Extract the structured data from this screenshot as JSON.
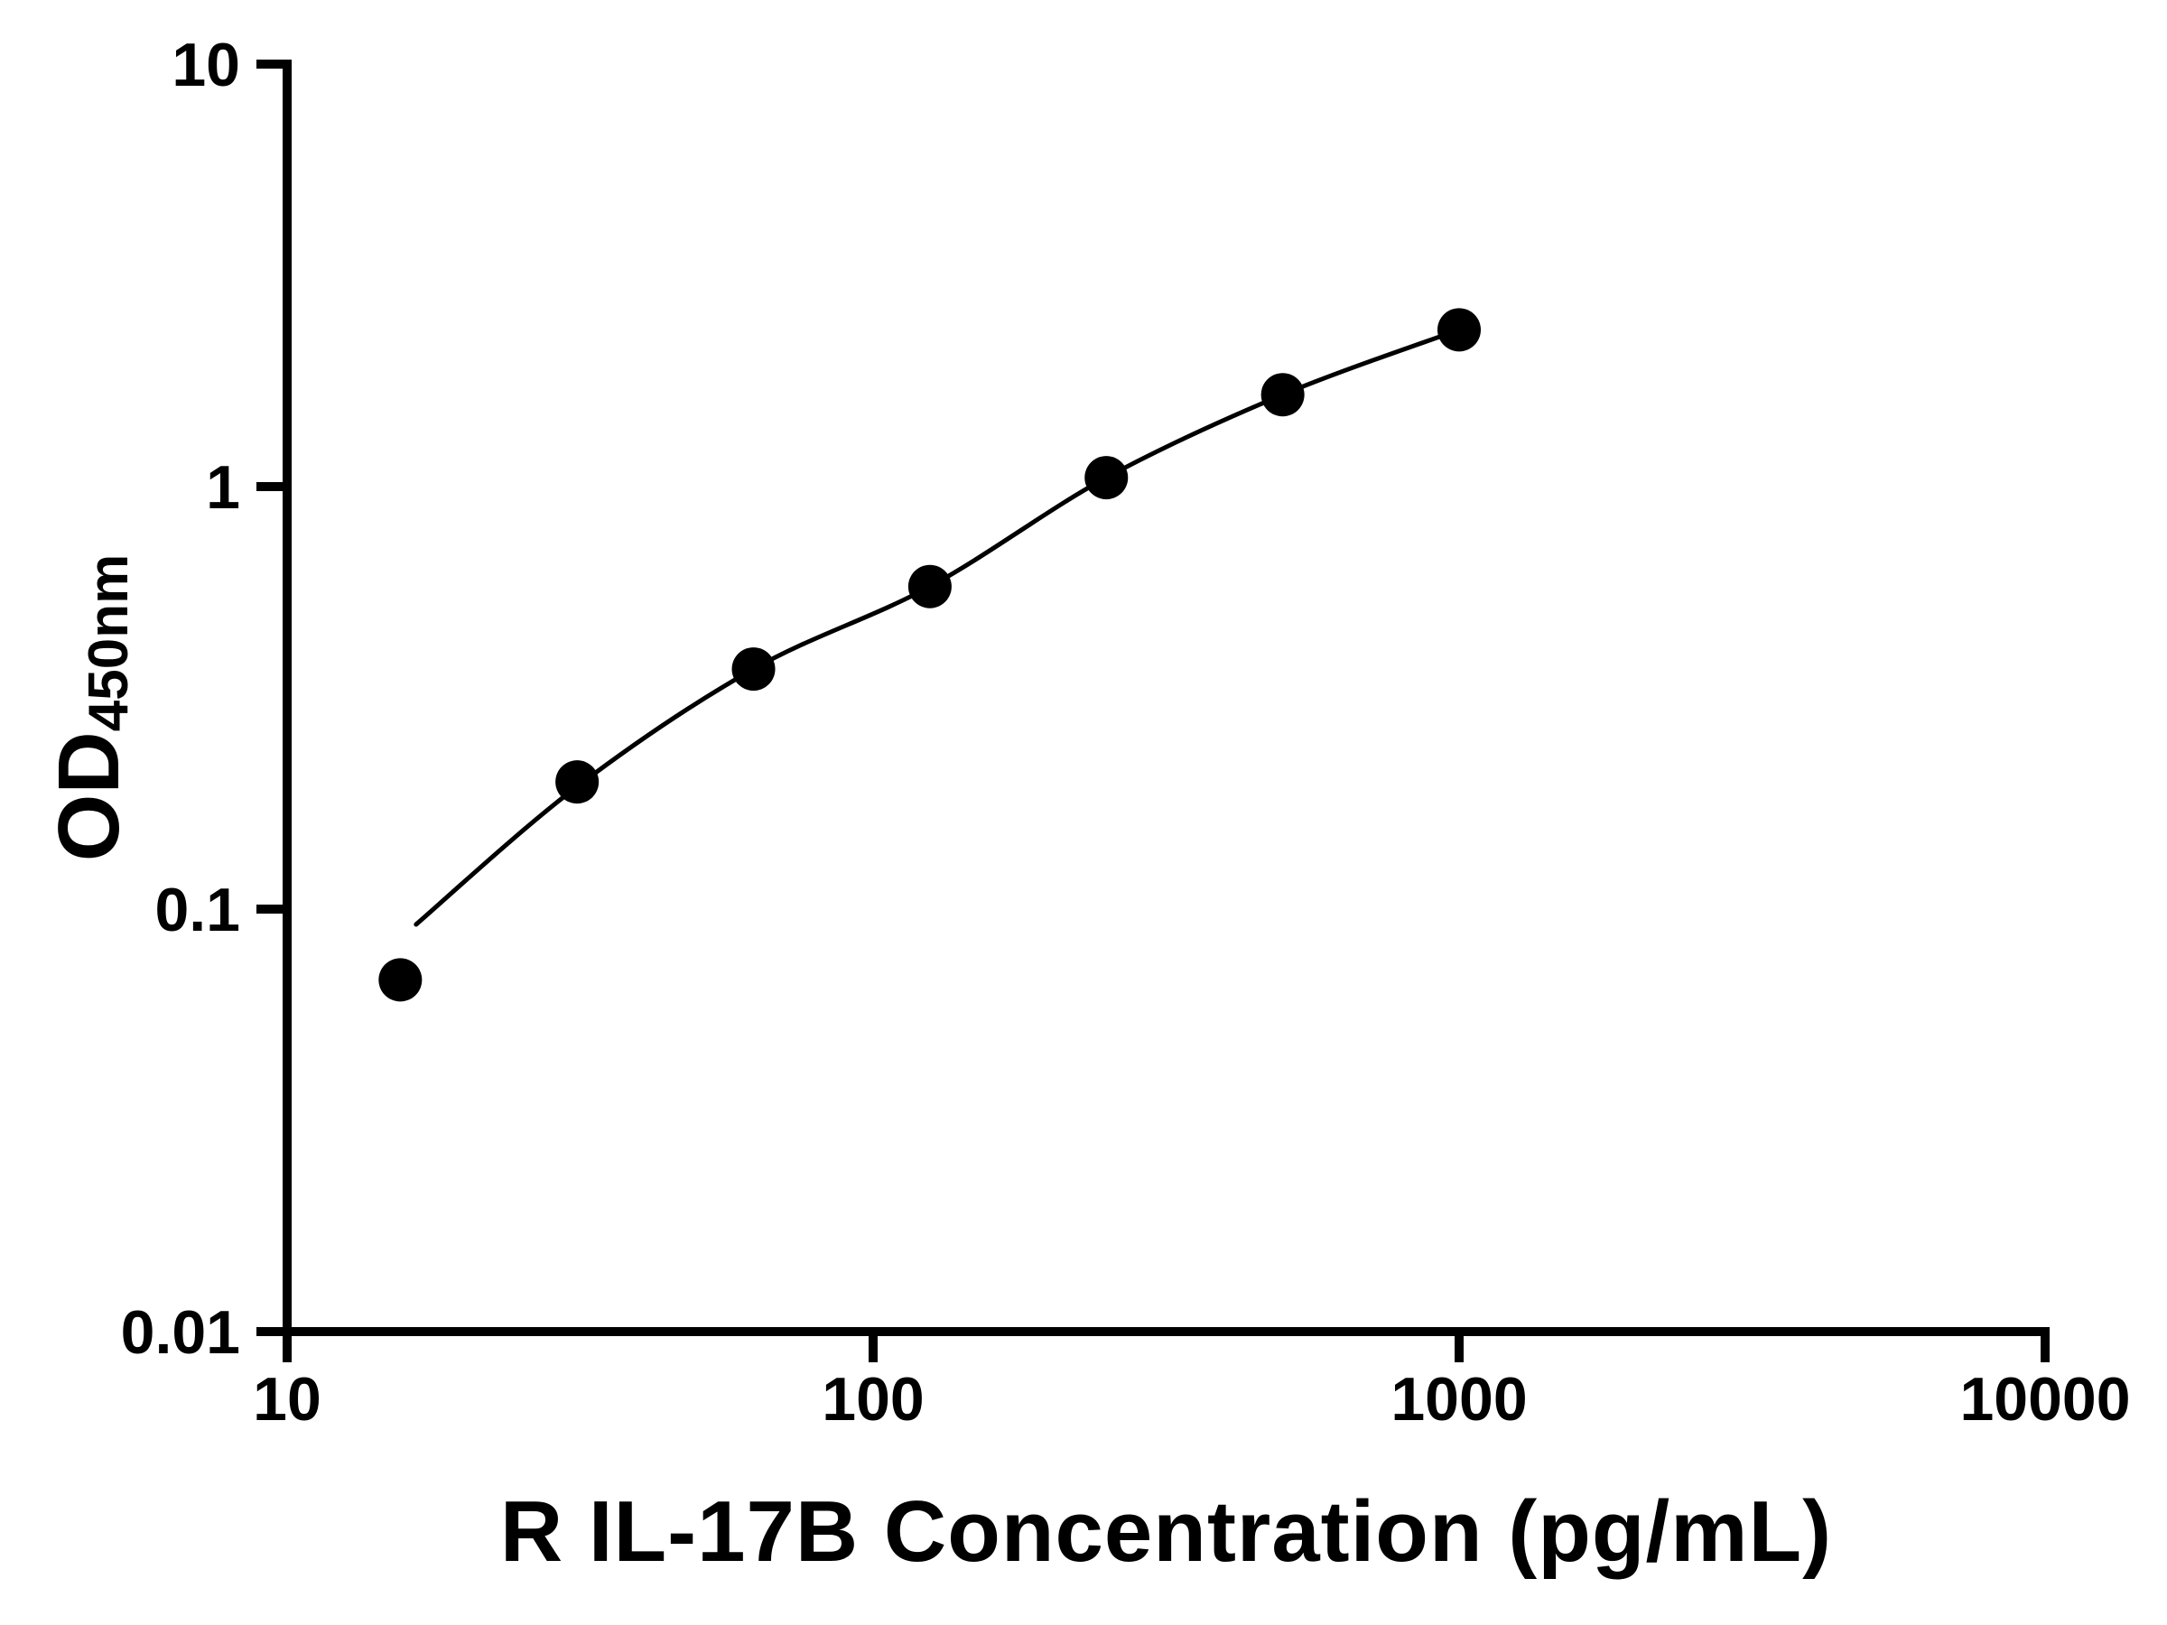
{
  "figure": {
    "ylabel_main": "OD",
    "ylabel_sub": "450nm"
  },
  "chart_data": {
    "type": "scatter",
    "title": "",
    "xlabel": "R IL-17B Concentration (pg/mL)",
    "ylabel": "OD450nm",
    "x_scale": "log",
    "y_scale": "log",
    "xlim": [
      10,
      10000
    ],
    "ylim": [
      0.01,
      10
    ],
    "x_ticks": [
      "10",
      "100",
      "1000",
      "10000"
    ],
    "y_ticks": [
      "0.01",
      "0.1",
      "1",
      "10"
    ],
    "grid": false,
    "legend": false,
    "axis_color": "#000000",
    "marker_color": "#000000",
    "series": [
      {
        "name": "fit-curve",
        "type": "line",
        "color": "#000000",
        "x": [
          16.6,
          31.25,
          62.5,
          125,
          250,
          500,
          1000
        ],
        "y": [
          0.092,
          0.195,
          0.37,
          0.58,
          1.05,
          1.65,
          2.35
        ]
      },
      {
        "name": "R IL-17B standard points",
        "type": "scatter",
        "marker": "filled-circle",
        "color": "#000000",
        "x": [
          15.6,
          31.25,
          62.5,
          125,
          250,
          500,
          1000
        ],
        "y": [
          0.068,
          0.2,
          0.37,
          0.58,
          1.05,
          1.65,
          2.35
        ]
      }
    ]
  }
}
